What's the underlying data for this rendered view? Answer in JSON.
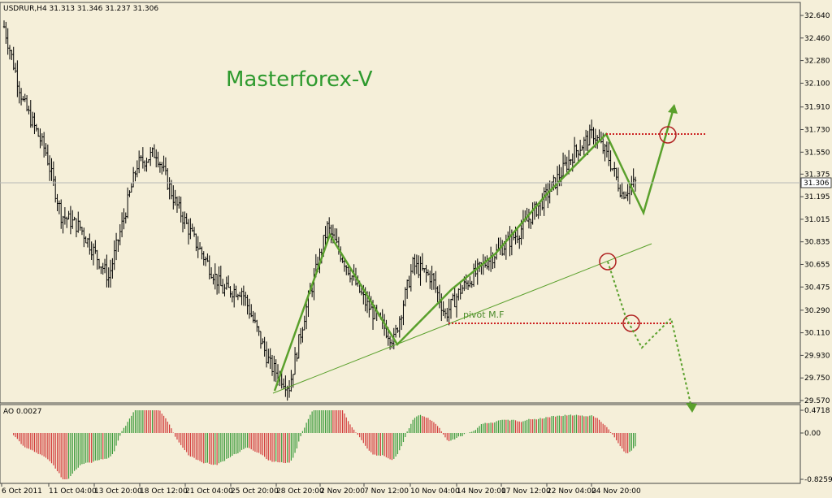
{
  "chart_data": {
    "type": "candlestick",
    "symbol_header": "USDRUR,H4  31.313 31.346 31.237 31.306",
    "brand": "Masterforex-V",
    "pivot_label": "pivot M.F",
    "price": {
      "yticks": [
        "32.640",
        "32.460",
        "32.280",
        "32.100",
        "31.910",
        "31.730",
        "31.550",
        "31.375",
        "31.195",
        "31.015",
        "30.835",
        "30.655",
        "30.475",
        "30.290",
        "30.110",
        "29.930",
        "29.750",
        "29.570"
      ],
      "last_price": "31.306",
      "ylim": [
        29.5,
        32.68
      ]
    },
    "oscillator": {
      "label": "AO 0.0027",
      "yticks": [
        "0.4718",
        "0.00",
        "-0.8259"
      ],
      "ylim": [
        -0.93,
        0.55
      ]
    },
    "xticks": [
      "6 Oct 2011",
      "11 Oct 04:00",
      "13 Oct 20:00",
      "18 Oct 12:00",
      "21 Oct 04:00",
      "25 Oct 20:00",
      "28 Oct 20:00",
      "2 Nov 20:00",
      "7 Nov 12:00",
      "10 Nov 04:00",
      "14 Nov 20:00",
      "17 Nov 12:00",
      "22 Nov 04:00",
      "24 Nov 20:00"
    ],
    "bars": 250,
    "price_anchors": [
      [
        0,
        32.55
      ],
      [
        10,
        31.95
      ],
      [
        22,
        31.55
      ],
      [
        30,
        31.05
      ],
      [
        40,
        30.95
      ],
      [
        55,
        30.55
      ],
      [
        70,
        31.45
      ],
      [
        80,
        31.55
      ],
      [
        90,
        31.15
      ],
      [
        100,
        30.85
      ],
      [
        115,
        30.45
      ],
      [
        125,
        30.45
      ],
      [
        140,
        29.85
      ],
      [
        150,
        29.68
      ],
      [
        158,
        30.25
      ],
      [
        170,
        30.95
      ],
      [
        180,
        30.65
      ],
      [
        190,
        30.35
      ],
      [
        200,
        30.15
      ],
      [
        205,
        30.05
      ],
      [
        215,
        30.65
      ],
      [
        225,
        30.55
      ],
      [
        232,
        30.25
      ],
      [
        240,
        30.45
      ],
      [
        255,
        30.7
      ],
      [
        270,
        30.9
      ],
      [
        285,
        31.2
      ],
      [
        300,
        31.55
      ],
      [
        310,
        31.7
      ],
      [
        318,
        31.5
      ],
      [
        325,
        31.22
      ],
      [
        332,
        31.306
      ]
    ],
    "colors": {
      "background": "#f5efd9",
      "bullish_wick": "#000000",
      "bearish_wick": "#000000",
      "ao_up": "#3a9a3a",
      "ao_down": "#d23a3a",
      "wave_line": "#5aa02c",
      "level_line": "#cc2222",
      "circle": "#b02020"
    }
  }
}
